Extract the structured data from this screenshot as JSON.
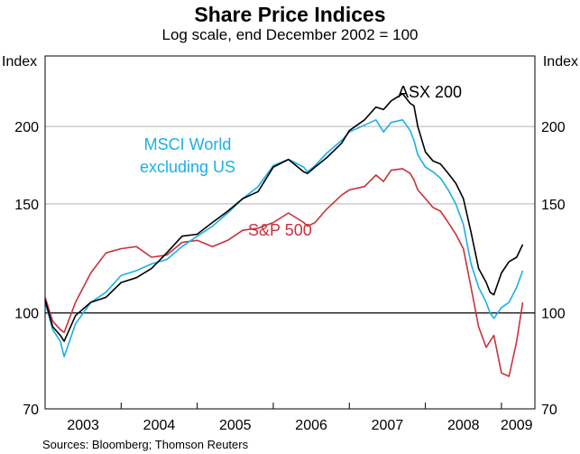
{
  "title": "Share Price Indices",
  "subtitle": "Log scale, end December 2002 = 100",
  "source": "Sources: Bloomberg; Thomson Reuters",
  "colors": {
    "asx": "#000000",
    "msci": "#1ab0e6",
    "sp": "#c8323c",
    "grid": "#b4b4b4",
    "reference": "#000000"
  },
  "chart_data": {
    "type": "line",
    "scale": "log",
    "reference_line": 100,
    "ylim": [
      70,
      260
    ],
    "y_ticks": [
      70,
      100,
      150,
      200
    ],
    "y_tick_labels": [
      "70",
      "100",
      "150",
      "200"
    ],
    "ylabel_left": "Index",
    "ylabel_right": "Index",
    "xlim": [
      2003.0,
      2009.44
    ],
    "x_tick_labels": [
      "2003",
      "2004",
      "2005",
      "2006",
      "2007",
      "2008",
      "2009"
    ],
    "x_tick_centers": [
      2003.5,
      2004.5,
      2005.5,
      2006.5,
      2007.5,
      2008.5,
      2009.2
    ],
    "grid": true,
    "series": [
      {
        "name": "ASX 200",
        "key": "asx",
        "x": [
          2003.0,
          2003.1,
          2003.2,
          2003.25,
          2003.4,
          2003.6,
          2003.8,
          2004.0,
          2004.2,
          2004.4,
          2004.6,
          2004.8,
          2005.0,
          2005.2,
          2005.4,
          2005.6,
          2005.8,
          2006.0,
          2006.2,
          2006.4,
          2006.45,
          2006.55,
          2006.7,
          2006.9,
          2007.0,
          2007.2,
          2007.35,
          2007.45,
          2007.55,
          2007.7,
          2007.8,
          2007.85,
          2007.9,
          2008.0,
          2008.1,
          2008.2,
          2008.3,
          2008.4,
          2008.5,
          2008.6,
          2008.7,
          2008.8,
          2008.85,
          2008.9,
          2009.0,
          2009.1,
          2009.2,
          2009.28
        ],
        "y": [
          105,
          95,
          92,
          90,
          99,
          104,
          106,
          112,
          114,
          118,
          125,
          133,
          134,
          140,
          146,
          153,
          157,
          172,
          177,
          169,
          168,
          172,
          178,
          188,
          197,
          205,
          215,
          213,
          220,
          226,
          218,
          216,
          200,
          182,
          176,
          174,
          168,
          162,
          153,
          135,
          118,
          112,
          108,
          107,
          116,
          121,
          123,
          129
        ]
      },
      {
        "name": "MSCI World excluding US",
        "key": "msci",
        "x": [
          2003.0,
          2003.1,
          2003.2,
          2003.25,
          2003.4,
          2003.6,
          2003.8,
          2004.0,
          2004.2,
          2004.4,
          2004.6,
          2004.8,
          2005.0,
          2005.2,
          2005.4,
          2005.6,
          2005.8,
          2006.0,
          2006.2,
          2006.4,
          2006.45,
          2006.55,
          2006.7,
          2006.9,
          2007.0,
          2007.2,
          2007.35,
          2007.45,
          2007.55,
          2007.7,
          2007.8,
          2007.85,
          2007.9,
          2008.0,
          2008.1,
          2008.2,
          2008.3,
          2008.4,
          2008.5,
          2008.6,
          2008.7,
          2008.8,
          2008.85,
          2008.9,
          2009.0,
          2009.1,
          2009.2,
          2009.28
        ],
        "y": [
          104,
          94,
          90,
          85,
          96,
          104,
          108,
          115,
          117,
          120,
          122,
          128,
          133,
          138,
          145,
          153,
          160,
          173,
          177,
          172,
          169,
          173,
          181,
          190,
          196,
          201,
          205,
          196,
          203,
          205,
          197,
          190,
          180,
          172,
          169,
          165,
          158,
          150,
          139,
          120,
          110,
          104,
          100,
          98,
          102,
          104,
          110,
          117
        ]
      },
      {
        "name": "S&P 500",
        "key": "sp",
        "x": [
          2003.0,
          2003.1,
          2003.2,
          2003.25,
          2003.4,
          2003.6,
          2003.8,
          2004.0,
          2004.2,
          2004.4,
          2004.6,
          2004.8,
          2005.0,
          2005.2,
          2005.4,
          2005.6,
          2005.8,
          2006.0,
          2006.2,
          2006.4,
          2006.45,
          2006.55,
          2006.7,
          2006.9,
          2007.0,
          2007.2,
          2007.35,
          2007.45,
          2007.55,
          2007.7,
          2007.8,
          2007.85,
          2007.9,
          2008.0,
          2008.1,
          2008.2,
          2008.3,
          2008.4,
          2008.5,
          2008.6,
          2008.7,
          2008.8,
          2008.85,
          2008.9,
          2009.0,
          2009.1,
          2009.2,
          2009.28
        ],
        "y": [
          106,
          97,
          94,
          93,
          104,
          116,
          125,
          127,
          128,
          123,
          124,
          130,
          131,
          128,
          131,
          136,
          137,
          140,
          145,
          140,
          138,
          140,
          147,
          155,
          158,
          160,
          167,
          163,
          170,
          171,
          168,
          164,
          158,
          153,
          148,
          146,
          140,
          134,
          127,
          110,
          95,
          88,
          90,
          92,
          80,
          79,
          90,
          104
        ]
      }
    ],
    "annotations": [
      {
        "text": "ASX 200",
        "series": "asx"
      },
      {
        "text": "MSCI World",
        "series": "msci"
      },
      {
        "text": "excluding US",
        "series": "msci"
      },
      {
        "text": "S&P 500",
        "series": "sp"
      }
    ]
  }
}
